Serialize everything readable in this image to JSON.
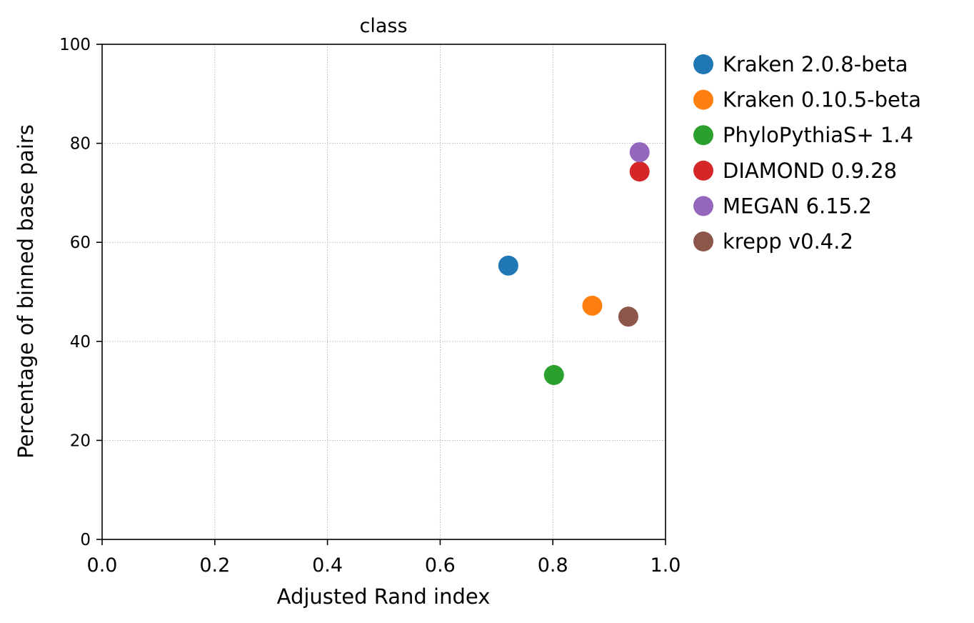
{
  "chart_data": {
    "type": "scatter",
    "title": "class",
    "xlabel": "Adjusted Rand index",
    "ylabel": "Percentage of binned base pairs",
    "xlim": [
      0.0,
      1.0
    ],
    "ylim": [
      0,
      100
    ],
    "xticks": [
      "0.0",
      "0.2",
      "0.4",
      "0.6",
      "0.8",
      "1.0"
    ],
    "yticks": [
      "0",
      "20",
      "40",
      "60",
      "80",
      "100"
    ],
    "grid": true,
    "legend_position": "outside-right",
    "series": [
      {
        "name": "Kraken 2.0.8-beta",
        "color": "#1f77b4",
        "x": 0.721,
        "y": 55.3
      },
      {
        "name": "Kraken 0.10.5-beta",
        "color": "#ff7f0e",
        "x": 0.87,
        "y": 47.2
      },
      {
        "name": "PhyloPythiaS+ 1.4",
        "color": "#2ca02c",
        "x": 0.802,
        "y": 33.2
      },
      {
        "name": "DIAMOND 0.9.28",
        "color": "#d62728",
        "x": 0.954,
        "y": 74.3
      },
      {
        "name": "MEGAN 6.15.2",
        "color": "#9467bd",
        "x": 0.954,
        "y": 78.2
      },
      {
        "name": "krepp v0.4.2",
        "color": "#8c564b",
        "x": 0.934,
        "y": 45.0
      }
    ]
  }
}
